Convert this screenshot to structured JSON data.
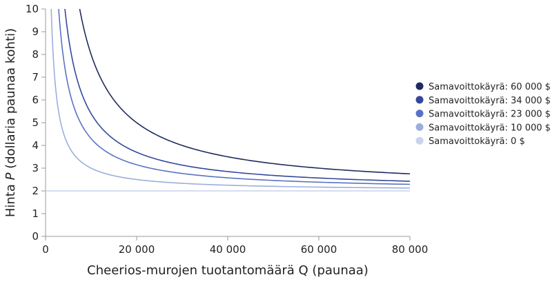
{
  "chart_data": {
    "type": "line",
    "title": "",
    "xlabel": "Cheerios-murojen tuotantomäärä Q (paunaa)",
    "ylabel_parts": {
      "before": "Hinta ",
      "italic": "P",
      "after": " (dollaria paunaa kohti)"
    },
    "xlim": [
      0,
      80000
    ],
    "ylim": [
      0,
      10
    ],
    "xticks": [
      0,
      20000,
      40000,
      60000,
      80000
    ],
    "xtick_labels": [
      "0",
      "20 000",
      "40 000",
      "60 000",
      "80 000"
    ],
    "yticks": [
      0,
      1,
      2,
      3,
      4,
      5,
      6,
      7,
      8,
      9,
      10
    ],
    "yticks_labels": [
      "0",
      "1",
      "2",
      "3",
      "4",
      "5",
      "6",
      "7",
      "8",
      "9",
      "10"
    ],
    "grid": false,
    "legend_position": "right",
    "average_cost": 2,
    "series": [
      {
        "name": "Samavoittokäyrä: 60 000 $",
        "profit": 60000,
        "color": "#1f2a5e"
      },
      {
        "name": "Samavoittokäyrä: 34 000 $",
        "profit": 34000,
        "color": "#34479a"
      },
      {
        "name": "Samavoittokäyrä: 23 000 $",
        "profit": 23000,
        "color": "#5a72c2"
      },
      {
        "name": "Samavoittokäyrä: 10 000 $",
        "profit": 10000,
        "color": "#9aaedc"
      },
      {
        "name": "Samavoittokäyrä: 0 $",
        "profit": 0,
        "color": "#c9d2ee"
      }
    ]
  }
}
